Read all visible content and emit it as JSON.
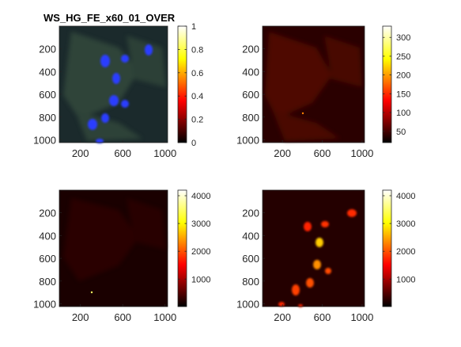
{
  "figure": {
    "title": "WS_HG_FE_x60_01_OVER"
  },
  "chart_data": [
    {
      "type": "heatmap",
      "title": "WS_HG_FE_x60_01_OVER",
      "image": "fluorescence overlay (blue nuclei, green cytoplasm)",
      "x_ticks": [
        200,
        600,
        1000
      ],
      "y_ticks": [
        200,
        400,
        600,
        800,
        1000
      ],
      "colorbar_ticks": [
        0,
        0.2,
        0.4,
        0.6,
        0.8,
        1
      ],
      "colorbar_range": [
        0,
        1
      ],
      "colormap": "hot"
    },
    {
      "type": "heatmap",
      "x_ticks": [
        200,
        600,
        1000
      ],
      "y_ticks": [
        200,
        400,
        600,
        800,
        1000
      ],
      "colorbar_ticks": [
        50,
        100,
        150,
        200,
        250,
        300
      ],
      "colorbar_range": [
        20,
        330
      ],
      "colormap": "hot"
    },
    {
      "type": "heatmap",
      "x_ticks": [
        200,
        600,
        1000
      ],
      "y_ticks": [
        200,
        400,
        600,
        800,
        1000
      ],
      "colorbar_ticks": [
        1000,
        2000,
        3000,
        4000
      ],
      "colorbar_range": [
        10,
        4200
      ],
      "colormap": "hot"
    },
    {
      "type": "heatmap",
      "x_ticks": [
        200,
        600,
        1000
      ],
      "y_ticks": [
        200,
        400,
        600,
        800,
        1000
      ],
      "colorbar_ticks": [
        1000,
        2000,
        3000,
        4000
      ],
      "colorbar_range": [
        10,
        4200
      ],
      "colormap": "hot"
    }
  ]
}
